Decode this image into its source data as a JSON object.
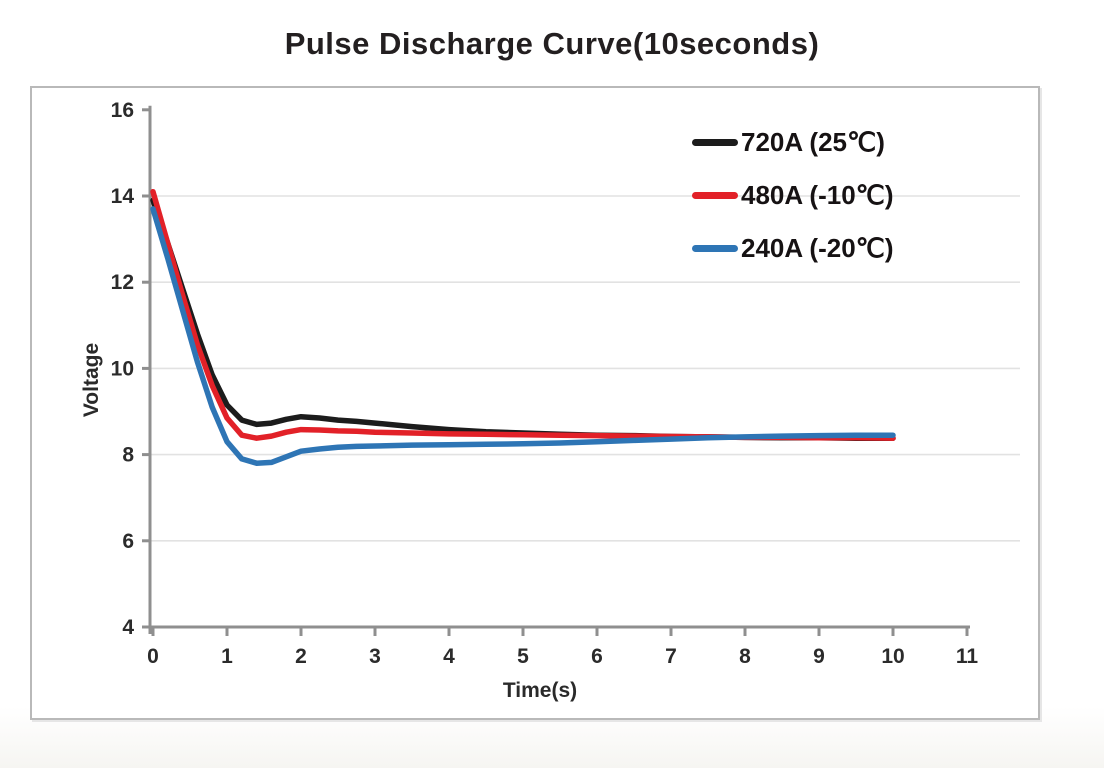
{
  "title": "Pulse Discharge Curve(10seconds)",
  "axis": {
    "x_title": "Time(s)",
    "y_title": "Voltage"
  },
  "colors": {
    "axis_line": "#8f8f8f",
    "gridline": "#e2e2e2",
    "tick_label": "#2b2b2b",
    "title_text": "#231f20",
    "frame_border": "#b9b9b9",
    "series_black": "#1c1c1c",
    "series_red": "#e22128",
    "series_blue": "#2e75b5"
  },
  "chart_data": {
    "type": "line",
    "title": "Pulse Discharge Curve(10seconds)",
    "xlabel": "Time(s)",
    "ylabel": "Voltage",
    "xlim": [
      0,
      11
    ],
    "ylim": [
      4,
      16
    ],
    "x_ticks": [
      0,
      1,
      2,
      3,
      4,
      5,
      6,
      7,
      8,
      9,
      10,
      11
    ],
    "y_ticks": [
      4,
      6,
      8,
      10,
      12,
      14,
      16
    ],
    "grid": "horizontal light-gray gridlines at 6,8,10,12,14",
    "legend_position": "upper-right inside plot",
    "x": [
      0,
      0.2,
      0.4,
      0.6,
      0.8,
      1.0,
      1.2,
      1.4,
      1.6,
      1.8,
      2.0,
      2.25,
      2.5,
      2.75,
      3,
      3.5,
      4,
      4.5,
      5,
      5.5,
      6,
      6.5,
      7,
      7.5,
      8,
      8.5,
      9,
      9.5,
      10
    ],
    "series": [
      {
        "name": "720A (25℃)",
        "color": "#1c1c1c",
        "values": [
          13.9,
          12.9,
          11.85,
          10.8,
          9.85,
          9.15,
          8.8,
          8.7,
          8.73,
          8.82,
          8.88,
          8.85,
          8.8,
          8.77,
          8.73,
          8.65,
          8.58,
          8.53,
          8.5,
          8.47,
          8.45,
          8.44,
          8.42,
          8.41,
          8.4,
          8.39,
          8.39,
          8.38,
          8.38
        ]
      },
      {
        "name": "480A (-10℃)",
        "color": "#e22128",
        "values": [
          14.1,
          12.9,
          11.7,
          10.55,
          9.6,
          8.85,
          8.45,
          8.38,
          8.43,
          8.52,
          8.58,
          8.57,
          8.55,
          8.54,
          8.52,
          8.5,
          8.48,
          8.47,
          8.46,
          8.45,
          8.44,
          8.43,
          8.42,
          8.41,
          8.4,
          8.4,
          8.39,
          8.39,
          8.38
        ]
      },
      {
        "name": "240A (-20℃)",
        "color": "#2e75b5",
        "values": [
          13.7,
          12.55,
          11.35,
          10.15,
          9.1,
          8.3,
          7.9,
          7.8,
          7.82,
          7.95,
          8.08,
          8.13,
          8.17,
          8.19,
          8.2,
          8.22,
          8.23,
          8.24,
          8.25,
          8.27,
          8.3,
          8.33,
          8.36,
          8.39,
          8.41,
          8.43,
          8.44,
          8.45,
          8.45
        ]
      }
    ]
  }
}
